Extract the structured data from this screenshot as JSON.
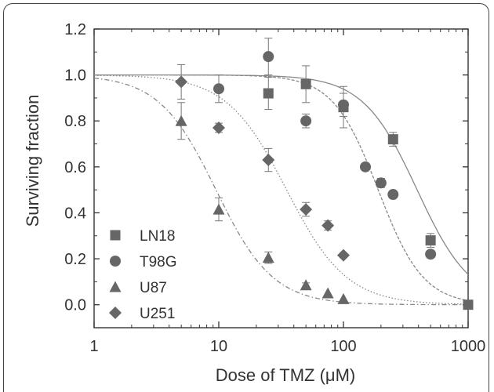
{
  "chart_data": {
    "type": "scatter",
    "title": "",
    "xlabel": "Dose of TMZ (μM)",
    "ylabel": "Surviving fraction",
    "xscale": "log",
    "xlim": [
      1,
      1000
    ],
    "ylim": [
      -0.1,
      1.2
    ],
    "xticks": [
      1,
      10,
      100,
      1000
    ],
    "xtick_labels": [
      "1",
      "10",
      "100",
      "1000"
    ],
    "yticks": [
      0.0,
      0.2,
      0.4,
      0.6,
      0.8,
      1.0,
      1.2
    ],
    "ytick_labels": [
      "0.0",
      "0.2",
      "0.4",
      "0.6",
      "0.8",
      "1.0",
      "1.2"
    ],
    "grid": false,
    "legend_position": "bottom-left",
    "series": [
      {
        "name": "LN18",
        "marker": "square",
        "color": "#666666",
        "fit_ic50": 390,
        "fit_hill": 2.0,
        "fit_style": "solid",
        "points": [
          {
            "x": 25,
            "y": 0.92,
            "err": 0.07
          },
          {
            "x": 50,
            "y": 0.96,
            "err": 0.08
          },
          {
            "x": 100,
            "y": 0.86,
            "err": 0.09
          },
          {
            "x": 250,
            "y": 0.72,
            "err": 0.03
          },
          {
            "x": 500,
            "y": 0.28,
            "err": 0.03
          },
          {
            "x": 1000,
            "y": 0.0,
            "err": 0.01
          }
        ]
      },
      {
        "name": "T98G",
        "marker": "circle",
        "color": "#666666",
        "fit_ic50": 190,
        "fit_hill": 2.4,
        "fit_style": "dashed",
        "points": [
          {
            "x": 10,
            "y": 0.94,
            "err": 0.06
          },
          {
            "x": 25,
            "y": 1.08,
            "err": 0.08
          },
          {
            "x": 50,
            "y": 0.8,
            "err": 0.03
          },
          {
            "x": 100,
            "y": 0.87,
            "err": 0.05
          },
          {
            "x": 150,
            "y": 0.6,
            "err": 0.0
          },
          {
            "x": 200,
            "y": 0.53,
            "err": 0.02
          },
          {
            "x": 250,
            "y": 0.48,
            "err": 0.015
          },
          {
            "x": 500,
            "y": 0.22,
            "err": 0.015
          }
        ]
      },
      {
        "name": "U87",
        "marker": "triangle",
        "color": "#666666",
        "fit_ic50": 9.5,
        "fit_hill": 1.9,
        "fit_style": "dashdot",
        "points": [
          {
            "x": 5,
            "y": 0.8,
            "err": 0.08
          },
          {
            "x": 10,
            "y": 0.415,
            "err": 0.05
          },
          {
            "x": 25,
            "y": 0.205,
            "err": 0.025
          },
          {
            "x": 50,
            "y": 0.085,
            "err": 0.01
          },
          {
            "x": 75,
            "y": 0.05,
            "err": 0.0
          },
          {
            "x": 100,
            "y": 0.025,
            "err": 0.0
          }
        ]
      },
      {
        "name": "U251",
        "marker": "diamond",
        "color": "#666666",
        "fit_ic50": 35,
        "fit_hill": 1.8,
        "fit_style": "dotted",
        "points": [
          {
            "x": 5,
            "y": 0.97,
            "err": 0.075
          },
          {
            "x": 10,
            "y": 0.77,
            "err": 0.02
          },
          {
            "x": 25,
            "y": 0.63,
            "err": 0.05
          },
          {
            "x": 50,
            "y": 0.415,
            "err": 0.03
          },
          {
            "x": 75,
            "y": 0.345,
            "err": 0.02
          },
          {
            "x": 100,
            "y": 0.215,
            "err": 0.01
          }
        ]
      }
    ]
  }
}
